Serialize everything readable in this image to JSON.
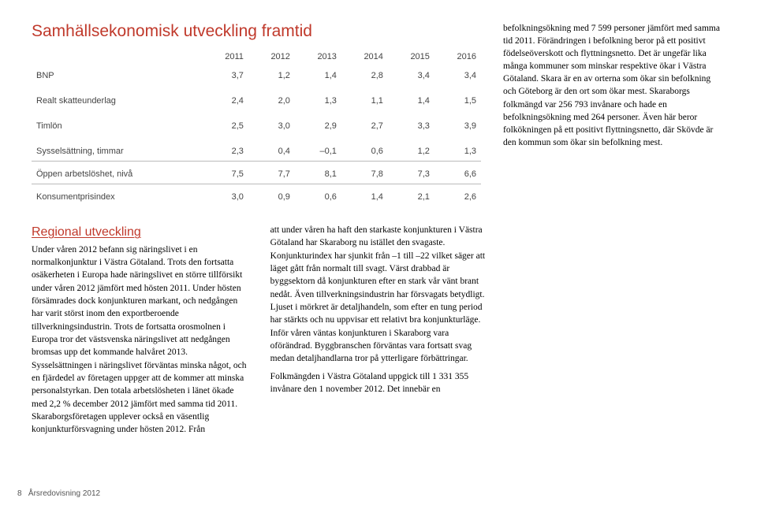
{
  "main_title": "Samhällsekonomisk utveckling framtid",
  "table": {
    "headers": [
      "",
      "2011",
      "2012",
      "2013",
      "2014",
      "2015",
      "2016"
    ],
    "rows": [
      [
        "BNP",
        "3,7",
        "1,2",
        "1,4",
        "2,8",
        "3,4",
        "3,4"
      ],
      [
        "Realt skatteunderlag",
        "2,4",
        "2,0",
        "1,3",
        "1,1",
        "1,4",
        "1,5"
      ],
      [
        "Timlön",
        "2,5",
        "3,0",
        "2,9",
        "2,7",
        "3,3",
        "3,9"
      ],
      [
        "Sysselsättning, timmar",
        "2,3",
        "0,4",
        "–0,1",
        "0,6",
        "1,2",
        "1,3"
      ],
      [
        "Öppen arbetslöshet, nivå",
        "7,5",
        "7,7",
        "8,1",
        "7,8",
        "7,3",
        "6,6"
      ],
      [
        "Konsumentprisindex",
        "3,0",
        "0,9",
        "0,6",
        "1,4",
        "2,1",
        "2,6"
      ]
    ]
  },
  "right_text": "befolkningsökning med 7 599 personer jämfört med samma tid 2011. Förändringen i befolkning beror på ett positivt födelseöverskott och flyttningsnetto. Det är ungefär lika många kommuner som minskar respektive ökar i Västra Götaland. Skara är en av orterna som ökar sin befolkning och Göteborg är den ort som ökar mest. Skaraborgs folkmängd var 256 793 invånare och hade en befolkningsökning med 264 personer. Även här beror folkökningen på ett positivt flyttningsnetto, där Skövde är den kommun som ökar sin befolkning mest.",
  "sub_title": "Regional utveckling",
  "body_left": "Under våren 2012 befann sig näringslivet i en normalkonjunktur i Västra Götaland. Trots den fortsatta osäkerheten i Europa hade näringslivet en större tillförsikt under våren 2012 jämfört med hösten 2011. Under hösten försämrades dock konjunkturen markant, och nedgången har varit störst inom den exportberoende tillverkningsindustrin. Trots de fortsatta orosmolnen i Europa tror det västsvenska näringslivet att nedgången bromsas upp det kommande halvåret 2013. Sysselsättningen i näringslivet förväntas minska något, och en fjärdedel av företagen uppger att de kommer att minska personalstyrkan. Den totala arbetslösheten i länet ökade med 2,2 % december 2012 jämfört med samma tid 2011. Skaraborgsföretagen upplever också en väsentlig konjunkturförsvagning under hösten 2012. Från",
  "body_right_p1": "att under våren ha haft den starkaste konjunkturen i Västra Götaland har Skaraborg nu istället den svagaste. Konjunkturindex har sjunkit från –1 till –22 vilket säger att läget gått från normalt till svagt. Värst drabbad är byggsektorn då konjunkturen efter en stark vår vänt brant nedåt. Även tillverkningsindustrin har försvagats betydligt. Ljuset i mörkret är detaljhandeln, som efter en tung period har stärkts och nu uppvisar ett relativt bra konjunkturläge. Inför våren väntas konjunkturen i Skaraborg vara oförändrad. Byggbranschen förväntas vara fortsatt svag medan detaljhandlarna tror på ytterligare förbättringar.",
  "body_right_p2": "Folkmängden i Västra Götaland uppgick till 1 331 355 invånare den 1 november 2012. Det innebär en",
  "footer_page": "8",
  "footer_text": "Årsredovisning 2012"
}
